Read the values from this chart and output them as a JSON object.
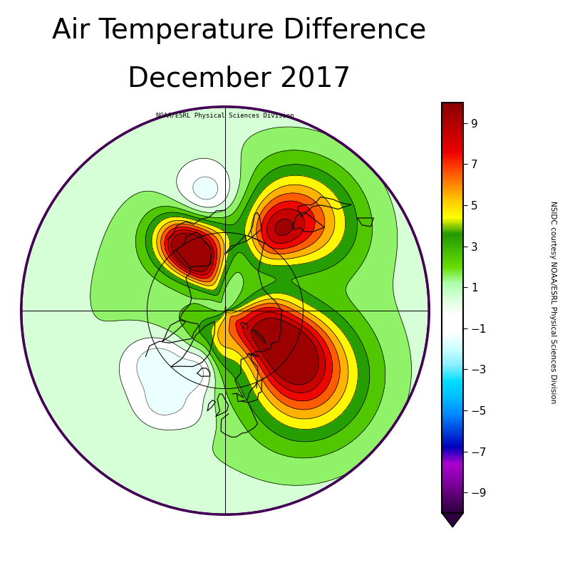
{
  "title_line1": "Air Temperature Difference",
  "title_line2": "December 2017",
  "title_fontsize": 28,
  "colorbar_label": "NSIDC courtesy NOAA/ESRL Physical Sciences Division",
  "map_label": "NOAA/ESRL Physical Sciences Division",
  "colorbar_ticks": [
    9,
    7,
    5,
    3,
    1,
    -1,
    -3,
    -5,
    -7,
    -9
  ],
  "vmin": -10,
  "vmax": 10,
  "cb_colors": [
    "#2d0040",
    "#5a0070",
    "#8800aa",
    "#aa00cc",
    "#0000bb",
    "#0044dd",
    "#0088ff",
    "#00bbff",
    "#00ddff",
    "#88eeff",
    "#ccffff",
    "#ffffff",
    "#ffffff",
    "#ddffdd",
    "#aaffaa",
    "#66dd00",
    "#44bb00",
    "#229900",
    "#ffff00",
    "#ffcc00",
    "#ff8800",
    "#ff4400",
    "#ee0000",
    "#cc0000",
    "#aa0000",
    "#880000"
  ],
  "figsize": [
    8.0,
    8.0
  ],
  "dpi": 100
}
